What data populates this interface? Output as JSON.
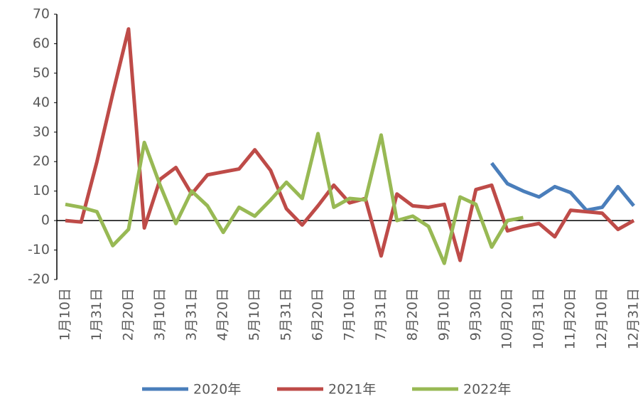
{
  "chart_data": {
    "type": "line",
    "categories": [
      "1月10日",
      null,
      "1月31日",
      null,
      "2月20日",
      null,
      "3月10日",
      null,
      "3月31日",
      null,
      "4月20日",
      null,
      "5月10日",
      null,
      "5月31日",
      null,
      "6月20日",
      null,
      "7月10日",
      null,
      "7月31日",
      null,
      "8月20日",
      null,
      "9月10日",
      null,
      "9月30日",
      null,
      "10月20日",
      null,
      "10月31日",
      null,
      "11月20日",
      null,
      "12月10日",
      null,
      "12月31日"
    ],
    "series": [
      {
        "name": "2020年",
        "color": "#4a7ebb",
        "values": [
          null,
          null,
          null,
          null,
          null,
          null,
          null,
          null,
          null,
          null,
          null,
          null,
          null,
          null,
          null,
          null,
          null,
          null,
          null,
          null,
          null,
          null,
          null,
          null,
          null,
          null,
          null,
          19.5,
          12.5,
          10,
          8,
          11.5,
          9.5,
          3.5,
          4.5,
          11.5,
          5
        ]
      },
      {
        "name": "2021年",
        "color": "#be4b48",
        "values": [
          0,
          -0.5,
          20,
          43,
          65,
          -2.5,
          14,
          18,
          9,
          15.5,
          16.5,
          17.5,
          24,
          17,
          4,
          -1.5,
          5,
          12,
          6,
          7.5,
          -12,
          9,
          5,
          4.5,
          5.5,
          -13.5,
          10.5,
          12,
          -3.5,
          -2,
          -1,
          -5.5,
          3.5,
          3,
          2.5,
          -3,
          0
        ]
      },
      {
        "name": "2022年",
        "color": "#98b954",
        "values": [
          5.5,
          4.5,
          3,
          -8.5,
          -3,
          26.5,
          12,
          -1,
          10,
          5,
          -4,
          4.5,
          1.5,
          7,
          13,
          7.5,
          29.5,
          4.5,
          7.5,
          7,
          29,
          0,
          1.5,
          -2,
          -14.5,
          8,
          5.5,
          -9,
          0,
          1,
          null,
          null,
          null,
          null,
          null,
          null,
          null
        ]
      }
    ],
    "ylim": [
      -20,
      70
    ],
    "yticks": [
      -20,
      -10,
      0,
      10,
      20,
      30,
      40,
      50,
      60,
      70
    ],
    "legend": "bottom"
  }
}
